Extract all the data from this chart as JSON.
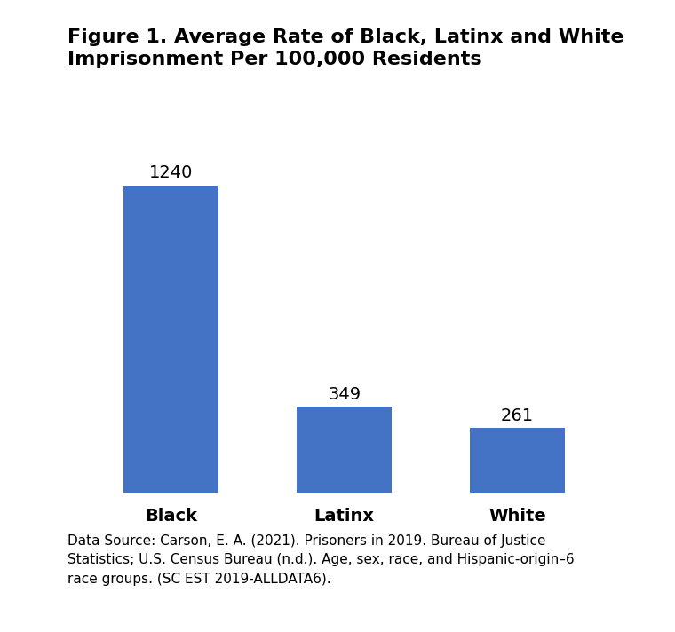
{
  "title": "Figure 1. Average Rate of Black, Latinx and White\nImprisonment Per 100,000 Residents",
  "categories": [
    "Black",
    "Latinx",
    "White"
  ],
  "values": [
    1240,
    349,
    261
  ],
  "bar_color": "#4472C4",
  "bar_width": 0.55,
  "label_fontsize": 14,
  "value_fontsize": 14,
  "title_fontsize": 16,
  "background_color": "#FFFFFF",
  "caption": "Data Source: Carson, E. A. (2021). Prisoners in 2019. Bureau of Justice\nStatistics; U.S. Census Bureau (n.d.). Age, sex, race, and Hispanic-origin–6\nrace groups. (SC EST 2019-ALLDATA6).",
  "caption_fontsize": 11,
  "ylim": [
    0,
    1400
  ]
}
